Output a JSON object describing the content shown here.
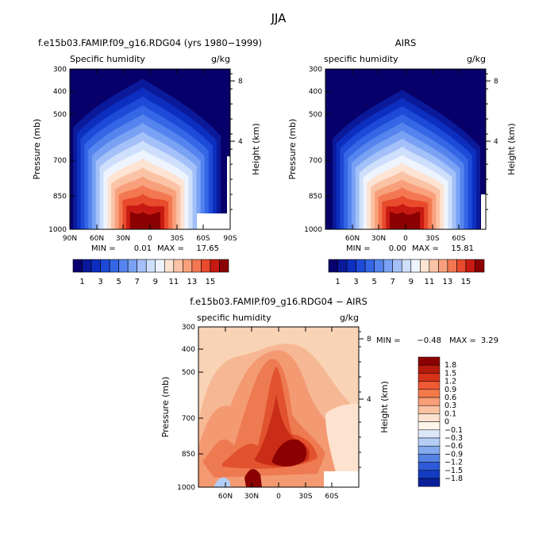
{
  "figure": {
    "title": "JJA"
  },
  "chart_data": [
    {
      "type": "heatmap",
      "title": "f.e15b03.FAMIP.f09_g16.RDG04 (yrs 1980−1999)",
      "subtitle_left": "Specific humidity",
      "subtitle_right": "g/kg",
      "ylabel": "Pressure (mb)",
      "y2label": "Height (km)",
      "x_ticks": [
        "90N",
        "60N",
        "30N",
        "0",
        "30S",
        "60S",
        "90S"
      ],
      "y_ticks": [
        "300",
        "400",
        "500",
        "700",
        "850",
        "1000"
      ],
      "y2_ticks": [
        "8",
        "4"
      ],
      "stats": {
        "min_label": "MIN =",
        "min_value": "0.01",
        "max_label": "MAX =",
        "max_value": "17.65"
      },
      "min": 0.01,
      "max": 17.65
    },
    {
      "type": "heatmap",
      "title": "AIRS",
      "subtitle_left": "specific humidity",
      "subtitle_right": "g/kg",
      "ylabel": "Pressure (mb)",
      "y2label": "Height (km)",
      "x_ticks": [
        "60N",
        "30N",
        "0",
        "30S",
        "60S"
      ],
      "y_ticks": [
        "300",
        "400",
        "500",
        "700",
        "850",
        "1000"
      ],
      "y2_ticks": [
        "8",
        "4"
      ],
      "stats": {
        "min_label": "MIN =",
        "min_value": "0.00",
        "max_label": "MAX =",
        "max_value": "15.81"
      },
      "min": 0.0,
      "max": 15.81
    },
    {
      "type": "heatmap",
      "title": "f.e15b03.FAMIP.f09_g16.RDG04 − AIRS",
      "subtitle_left": "specific humidity",
      "subtitle_right": "g/kg",
      "ylabel": "Pressure (mb)",
      "y2label": "Height (km)",
      "x_ticks": [
        "60N",
        "30N",
        "0",
        "30S",
        "60S"
      ],
      "y_ticks": [
        "300",
        "400",
        "500",
        "700",
        "850",
        "1000"
      ],
      "y2_ticks": [
        "8",
        "4"
      ],
      "stats": {
        "min_label": "MIN =",
        "min_value": "−0.48",
        "max_label": "MAX =",
        "max_value": "3.29"
      },
      "min": -0.48,
      "max": 3.29
    }
  ],
  "colorbar_top": {
    "labels": [
      "1",
      "3",
      "5",
      "7",
      "9",
      "11",
      "13",
      "15"
    ],
    "colors": [
      "#08006e",
      "#0a1a9a",
      "#0d2fc0",
      "#1e4ad8",
      "#3466e6",
      "#5584ee",
      "#7aa2f4",
      "#a3c0f8",
      "#cddffb",
      "#eef4fd",
      "#fde3d2",
      "#fbc3a6",
      "#f8a07c",
      "#f37852",
      "#e84a2c",
      "#c81a12",
      "#8b0000"
    ]
  },
  "colorbar_diff": {
    "labels": [
      "1.8",
      "1.5",
      "1.2",
      "0.9",
      "0.6",
      "0.3",
      "0.1",
      "0",
      "−0.1",
      "−0.3",
      "−0.6",
      "−0.9",
      "−1.2",
      "−1.5",
      "−1.8"
    ],
    "colors": [
      "#8b0000",
      "#b51a0c",
      "#d9321a",
      "#ee5a33",
      "#f47a4a",
      "#f89f78",
      "#fbc2a2",
      "#fde3cf",
      "#fff6ea",
      "#dce8fa",
      "#b4cdf5",
      "#84a9ee",
      "#5582e4",
      "#2d5ad6",
      "#123bbf",
      "#0a1f98"
    ]
  }
}
